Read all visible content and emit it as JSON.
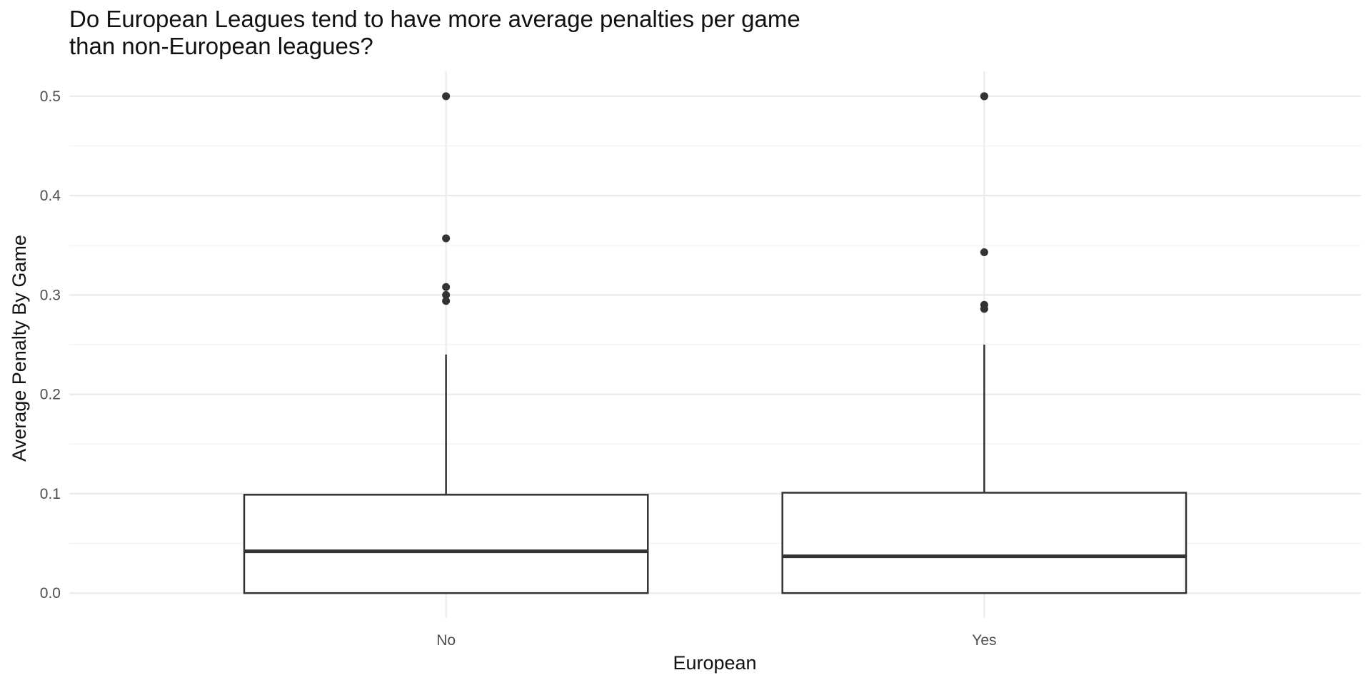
{
  "chart_data": {
    "type": "box",
    "title_lines": [
      "Do European Leagues tend to have more average penalties per game",
      "than non-European leagues?"
    ],
    "xlabel": "European",
    "ylabel": "Average Penalty By Game",
    "categories": [
      "No",
      "Yes"
    ],
    "yticks": [
      0.0,
      0.1,
      0.2,
      0.3,
      0.4,
      0.5
    ],
    "ytick_labels": [
      "0.0",
      "0.1",
      "0.2",
      "0.3",
      "0.4",
      "0.5"
    ],
    "ylim": [
      -0.025,
      0.525
    ],
    "grid": true,
    "legend": "none",
    "boxes": [
      {
        "category": "No",
        "q1": 0.0,
        "median": 0.042,
        "q3": 0.099,
        "whisker_low": 0.0,
        "whisker_high": 0.24,
        "outliers": [
          0.5,
          0.357,
          0.308,
          0.3,
          0.294
        ]
      },
      {
        "category": "Yes",
        "q1": 0.0,
        "median": 0.037,
        "q3": 0.101,
        "whisker_low": 0.0,
        "whisker_high": 0.25,
        "outliers": [
          0.5,
          0.5,
          0.343,
          0.29,
          0.286
        ]
      }
    ],
    "colors": {
      "box_fill": "#ffffff",
      "box_line": "#333333",
      "outlier": "#333333",
      "grid_major": "#ebebeb",
      "grid_minor": "#f4f4f4"
    }
  }
}
